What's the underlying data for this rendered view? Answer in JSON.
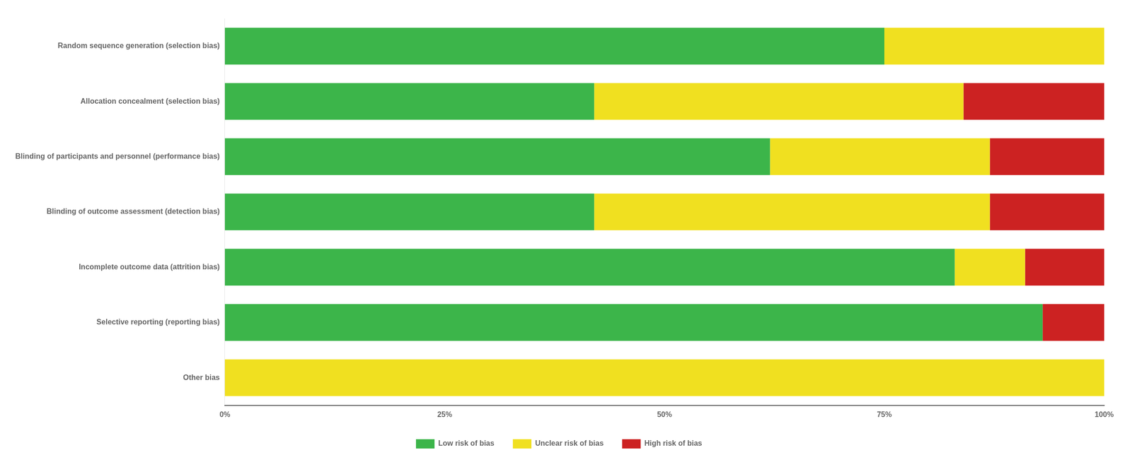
{
  "chart_data": {
    "type": "bar",
    "orientation": "horizontal",
    "stacked": true,
    "categories": [
      "Random sequence generation (selection bias)",
      "Allocation concealment (selection bias)",
      "Blinding of participants and personnel (performance bias)",
      "Blinding of outcome assessment (detection bias)",
      "Incomplete outcome data (attrition bias)",
      "Selective reporting (reporting bias)",
      "Other bias"
    ],
    "series": [
      {
        "name": "Low risk of bias",
        "color": "#3cb54a",
        "values": [
          75,
          42,
          62,
          42,
          83,
          93,
          0
        ]
      },
      {
        "name": "Unclear risk of bias",
        "color": "#f0e020",
        "values": [
          25,
          42,
          25,
          45,
          8,
          0,
          100
        ]
      },
      {
        "name": "High risk of bias",
        "color": "#cc2222",
        "values": [
          0,
          16,
          13,
          13,
          9,
          7,
          0
        ]
      }
    ],
    "xlim": [
      0,
      100
    ],
    "xticks": [
      {
        "value": 0,
        "label": "0%"
      },
      {
        "value": 25,
        "label": "25%"
      },
      {
        "value": 50,
        "label": "50%"
      },
      {
        "value": 75,
        "label": "75%"
      },
      {
        "value": 100,
        "label": "100%"
      }
    ],
    "grid": false,
    "legend": "bottom"
  }
}
